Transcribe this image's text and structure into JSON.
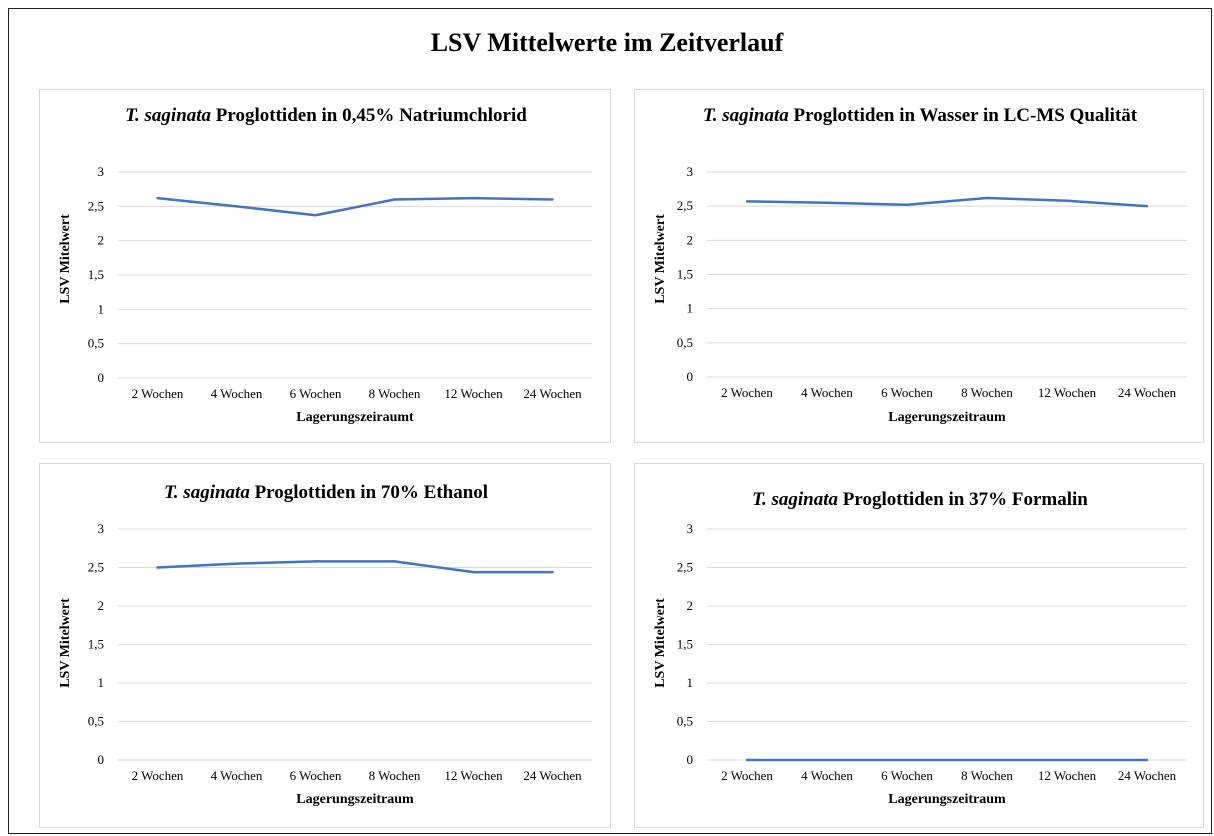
{
  "main_title": "LSV Mittelwerte im Zeitverlauf",
  "colors": {
    "line": "#4472C4",
    "grid": "#d9d9d9",
    "panel_border": "#d9d9d9"
  },
  "chart_data": [
    {
      "type": "line",
      "title_italic": "T. saginata",
      "title_rest": " Proglottiden in 0,45% Natriumchlorid",
      "xlabel": "Lagerungszeiraumt",
      "ylabel": "LSV Mitelwert",
      "categories": [
        "2 Wochen",
        "4 Wochen",
        "6 Wochen",
        "8 Wochen",
        "12 Wochen",
        "24 Wochen"
      ],
      "values": [
        2.62,
        2.5,
        2.37,
        2.6,
        2.62,
        2.6
      ],
      "yticks": [
        "0",
        "0,5",
        "1",
        "1,5",
        "2",
        "2,5",
        "3"
      ],
      "ylim": [
        0,
        3
      ],
      "grid": true
    },
    {
      "type": "line",
      "title_italic": "T. saginata",
      "title_rest": " Proglottiden in Wasser in LC-MS Qualität",
      "xlabel": "Lagerungszeitraum",
      "ylabel": "LSV Mitelwert",
      "categories": [
        "2 Wochen",
        "4 Wochen",
        "6 Wochen",
        "8 Wochen",
        "12 Wochen",
        "24 Wochen"
      ],
      "values": [
        2.57,
        2.55,
        2.52,
        2.62,
        2.58,
        2.5
      ],
      "yticks": [
        "0",
        "0,5",
        "1",
        "1,5",
        "2",
        "2,5",
        "3"
      ],
      "ylim": [
        0,
        3
      ],
      "grid": true
    },
    {
      "type": "line",
      "title_italic": "T. saginata",
      "title_rest": " Proglottiden in 70% Ethanol",
      "xlabel": "Lagerungszeitraum",
      "ylabel": "LSV Mitelwert",
      "categories": [
        "2 Wochen",
        "4 Wochen",
        "6 Wochen",
        "8 Wochen",
        "12 Wochen",
        "24 Wochen"
      ],
      "values": [
        2.5,
        2.55,
        2.58,
        2.58,
        2.44,
        2.44
      ],
      "yticks": [
        "0",
        "0,5",
        "1",
        "1,5",
        "2",
        "2,5",
        "3"
      ],
      "ylim": [
        0,
        3
      ],
      "grid": true
    },
    {
      "type": "line",
      "title_italic": "T. saginata",
      "title_rest": " Proglottiden in 37% Formalin",
      "xlabel": "Lagerungszeitraum",
      "ylabel": "LSV Mitelwert",
      "categories": [
        "2 Wochen",
        "4 Wochen",
        "6 Wochen",
        "8 Wochen",
        "12 Wochen",
        "24 Wochen"
      ],
      "values": [
        0,
        0,
        0,
        0,
        0,
        0
      ],
      "yticks": [
        "0",
        "0,5",
        "1",
        "1,5",
        "2",
        "2,5",
        "3"
      ],
      "ylim": [
        0,
        3
      ],
      "grid": true
    }
  ]
}
